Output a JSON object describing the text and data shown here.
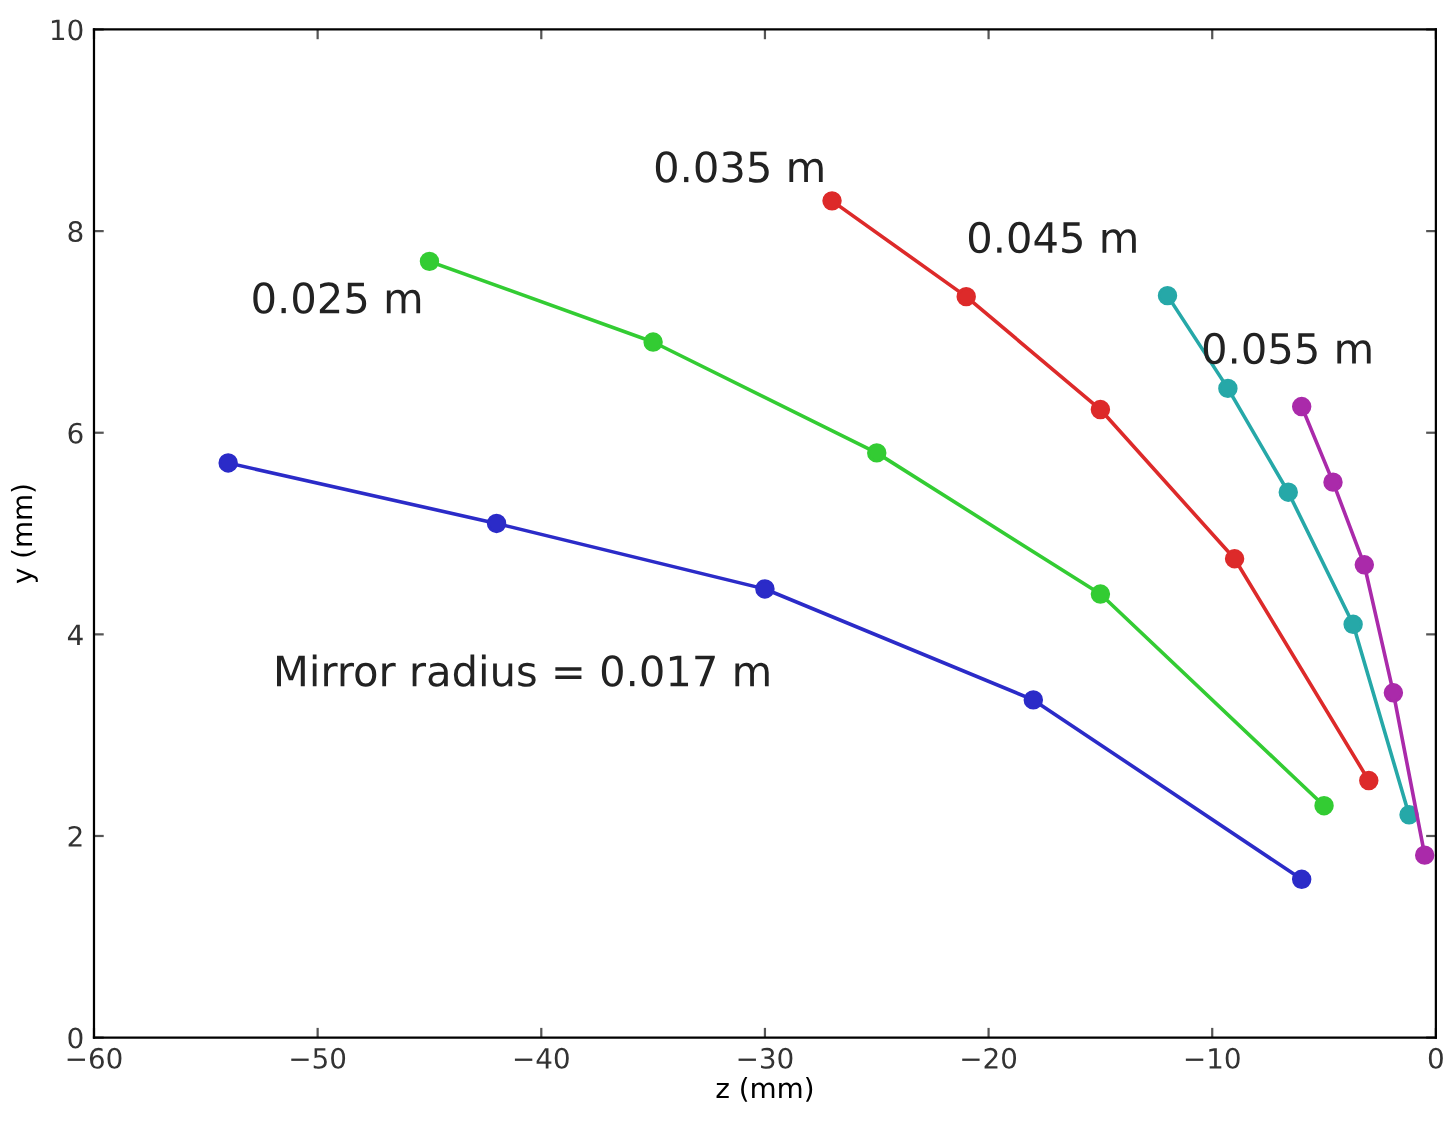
{
  "chart_data": {
    "type": "line",
    "xlabel": "z (mm)",
    "ylabel": "y (mm)",
    "xlim": [
      -60,
      0
    ],
    "ylim": [
      0,
      10
    ],
    "xticks": [
      -60,
      -50,
      -40,
      -30,
      -20,
      -10,
      0
    ],
    "yticks": [
      0,
      2,
      4,
      6,
      8,
      10
    ],
    "grid": false,
    "legend": false,
    "marker": "circle",
    "line_style": "solid",
    "series": [
      {
        "name": "Mirror radius = 0.017 m",
        "color": "#2b2bc8",
        "x": [
          -54,
          -42,
          -30,
          -18,
          -6
        ],
        "values": [
          5.7,
          5.1,
          4.45,
          3.35,
          1.57
        ]
      },
      {
        "name": "0.025 m",
        "color": "#33cc33",
        "x": [
          -45,
          -35,
          -25,
          -15,
          -5
        ],
        "values": [
          7.7,
          6.9,
          5.8,
          4.4,
          2.3
        ]
      },
      {
        "name": "0.035 m",
        "color": "#dd2a2a",
        "x": [
          -27,
          -21,
          -15,
          -9,
          -3
        ],
        "values": [
          8.3,
          7.35,
          6.23,
          4.75,
          2.55
        ]
      },
      {
        "name": "0.045 m",
        "color": "#26a8a8",
        "x": [
          -12,
          -9.3,
          -6.6,
          -3.7,
          -1.2
        ],
        "values": [
          7.36,
          6.44,
          5.41,
          4.1,
          2.21
        ]
      },
      {
        "name": "0.055 m",
        "color": "#aa2aaa",
        "x": [
          -6,
          -4.6,
          -3.2,
          -1.9,
          -0.5
        ],
        "values": [
          6.26,
          5.51,
          4.69,
          3.42,
          1.81
        ]
      }
    ]
  }
}
